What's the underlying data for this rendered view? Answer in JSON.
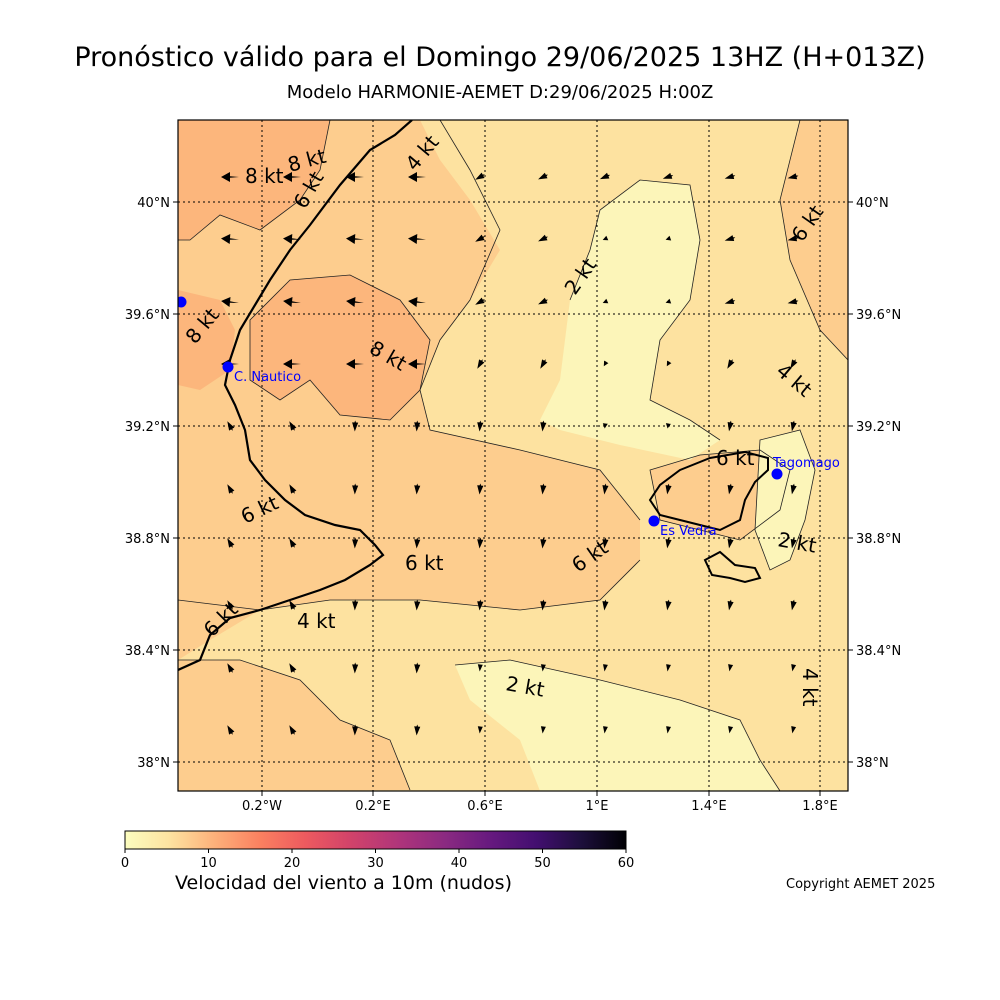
{
  "header": {
    "title": "Pronóstico válido para el Domingo 29/06/2025 13HZ (H+013Z)",
    "subtitle": "Modelo HARMONIE-AEMET D:29/06/2025 H:00Z"
  },
  "map": {
    "lon_labels": [
      "0.2°W",
      "0.2°E",
      "0.6°E",
      "1°E",
      "1.4°E",
      "1.8°E"
    ],
    "lat_labels": [
      "40°N",
      "39.6°N",
      "39.2°N",
      "38.8°N",
      "38.4°N",
      "38°N"
    ],
    "contour_labels": [
      "8 kt",
      "8 kt",
      "6 kt",
      "4 kt",
      "2 kt",
      "6 kt",
      "8 kt",
      "8 kt",
      "4 kt",
      "6 kt",
      "6 kt",
      "6 kt",
      "6 kt",
      "6 kt",
      "4 kt",
      "2 kt",
      "2 kt",
      "4 kt"
    ],
    "stations": [
      "C. Nautico",
      "Tagomago",
      "Es Vedra"
    ],
    "colors": {
      "ramp": [
        "#fcfdbf",
        "#fde2a0",
        "#fdc586",
        "#fca46b",
        "#f9795d",
        "#e8525f",
        "#c63d6c",
        "#a6317e",
        "#7f2582",
        "#57157e",
        "#2c115f",
        "#000004"
      ],
      "station": "#0000ff",
      "coast": "#000000"
    }
  },
  "colorbar": {
    "ticks": [
      "0",
      "10",
      "20",
      "30",
      "40",
      "50",
      "60"
    ],
    "label": "Velocidad del viento a 10m (nudos)"
  },
  "footer": {
    "copyright": "Copyright AEMET 2025"
  }
}
